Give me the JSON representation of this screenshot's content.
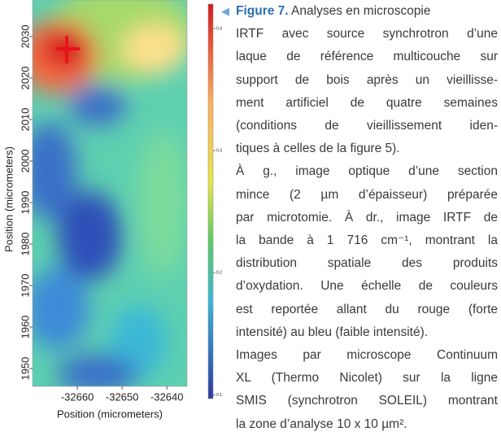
{
  "figure": {
    "y_label": "Position (micrometers)",
    "x_label": "Position (micrometers)",
    "ylim": [
      1945.7,
      2038.8
    ],
    "yticks": [
      1950,
      1960,
      1970,
      1980,
      1990,
      2000,
      2010,
      2020,
      2030
    ],
    "xlim": [
      -32670,
      -32635.5
    ],
    "xticks": [
      -32660,
      -32650,
      -32640
    ],
    "colorbar_lim": [
      0.097,
      0.42
    ],
    "colorbar_ticks": [
      0.1,
      0.2,
      0.3,
      0.4
    ]
  },
  "caption": {
    "label": "Figure 7.",
    "paragraphs": [
      [
        " Analyses en microscopie",
        "IRTF avec source synchrotron d’une",
        "laque de référence multicouche sur",
        "support de bois après un vieillisse-",
        "ment artificiel de quatre semaines",
        "(conditions de vieillissement iden-",
        "tiques à celles de la figure 5)."
      ],
      [
        "À g., image optique d’une section",
        "mince (2 µm d’épaisseur) préparée",
        "par microtomie. À dr., image IRTF de",
        "la bande à 1 716 cm⁻¹, montrant la",
        "distribution spatiale des produits",
        "d’oxydation. Une échelle de couleurs",
        "est reportée allant du rouge (forte",
        "intensité) au bleu (faible intensité)."
      ],
      [
        "Images par microscope Continuum",
        "XL (Thermo Nicolet) sur la ligne",
        "SMIS (synchrotron SOLEIL) montrant",
        "la zone d’analyse 10 x 10 µm²."
      ]
    ]
  }
}
